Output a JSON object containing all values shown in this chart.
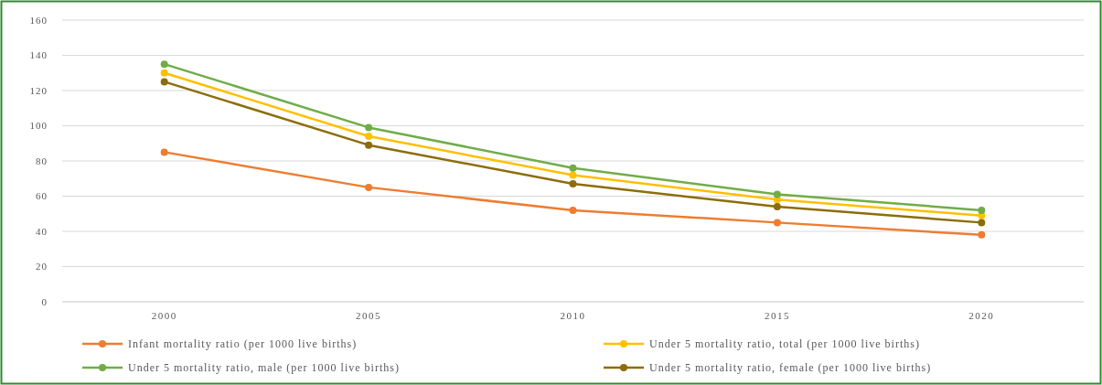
{
  "chart_data": {
    "type": "line",
    "categories": [
      "2000",
      "2005",
      "2010",
      "2015",
      "2020"
    ],
    "series": [
      {
        "name": "Infant mortality ratio (per 1000 live births)",
        "color": "#ed7d31",
        "values": [
          85,
          65,
          52,
          45,
          38
        ]
      },
      {
        "name": "Under 5 mortality ratio, total (per 1000 live births)",
        "color": "#ffc000",
        "values": [
          130,
          94,
          72,
          58,
          49
        ]
      },
      {
        "name": "Under 5 mortality ratio, male (per 1000 live births)",
        "color": "#70ad47",
        "values": [
          135,
          99,
          76,
          61,
          52
        ]
      },
      {
        "name": "Under 5 mortality ratio, female (per 1000 live births)",
        "color": "#8c6d0a",
        "values": [
          125,
          89,
          67,
          54,
          45
        ]
      }
    ],
    "ylim": [
      0,
      160
    ],
    "yticks": [
      0,
      20,
      40,
      60,
      80,
      100,
      120,
      140,
      160
    ],
    "grid": "y",
    "legend": "bottom",
    "marker": "circle",
    "line_style": "solid"
  }
}
